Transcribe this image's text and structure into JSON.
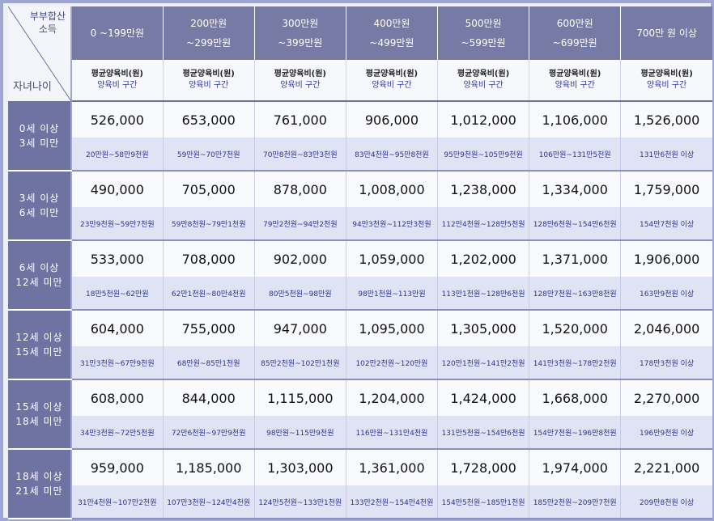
{
  "header": {
    "corner_income_line1": "부부합산",
    "corner_income_line2": "소득",
    "corner_age": "자녀나이",
    "brackets": [
      {
        "line1": "0  ~199만원",
        "line2": ""
      },
      {
        "line1": "200만원",
        "line2": "~299만원"
      },
      {
        "line1": "300만원",
        "line2": "~399만원"
      },
      {
        "line1": "400만원",
        "line2": "~499만원"
      },
      {
        "line1": "500만원",
        "line2": "~599만원"
      },
      {
        "line1": "600만원",
        "line2": "~699만원"
      },
      {
        "line1": "700만 원 이상",
        "line2": ""
      }
    ],
    "avg_label": "평균양육비(원)",
    "range_label": "양육비 구간"
  },
  "rows": [
    {
      "age_line1": "0세 이상",
      "age_line2": "3세 미만",
      "avg": [
        "526,000",
        "653,000",
        "761,000",
        "906,000",
        "1,012,000",
        "1,106,000",
        "1,526,000"
      ],
      "range": [
        "20만원~58만9천원",
        "59만원~70만7천원",
        "70만8천원~83만3천원",
        "83만4천원~95만8천원",
        "95만9천원~105만9천원",
        "106만원~131만5천원",
        "131만6천원 이상"
      ]
    },
    {
      "age_line1": "3세 이상",
      "age_line2": "6세 미만",
      "avg": [
        "490,000",
        "705,000",
        "878,000",
        "1,008,000",
        "1,238,000",
        "1,334,000",
        "1,759,000"
      ],
      "range": [
        "23만9천원~59만7천원",
        "59만8천원~79만1천원",
        "79만2천원~94만2천원",
        "94만3천원~112만3천원",
        "112만4천원~128만5천원",
        "128만6천원~154만6천원",
        "154만7천원 이상"
      ]
    },
    {
      "age_line1": "6세 이상",
      "age_line2": "12세 미만",
      "avg": [
        "533,000",
        "708,000",
        "902,000",
        "1,059,000",
        "1,202,000",
        "1,371,000",
        "1,906,000"
      ],
      "range": [
        "18만5천원~62만원",
        "62만1천원~80만4천원",
        "80만5천원~98만원",
        "98만1천원~113만원",
        "113만1천원~128만6천원",
        "128만7천원~163만8천원",
        "163만9천원 이상"
      ]
    },
    {
      "age_line1": "12세 이상",
      "age_line2": "15세 미만",
      "avg": [
        "604,000",
        "755,000",
        "947,000",
        "1,095,000",
        "1,305,000",
        "1,520,000",
        "2,046,000"
      ],
      "range": [
        "31만3천원~67만9천원",
        "68만원~85만1천원",
        "85만2천원~102만1천원",
        "102만2천원~120만원",
        "120만1천원~141만2천원",
        "141만3천원~178만2천원",
        "178만3천원 이상"
      ]
    },
    {
      "age_line1": "15세 이상",
      "age_line2": "18세 미만",
      "avg": [
        "608,000",
        "844,000",
        "1,115,000",
        "1,204,000",
        "1,424,000",
        "1,668,000",
        "2,270,000"
      ],
      "range": [
        "34만3천원~72만5천원",
        "72만6천원~97만9천원",
        "98만원~115만9천원",
        "116만원~131만4천원",
        "131만5천원~154만6천원",
        "154만7천원~196만8천원",
        "196만9천원 이상"
      ]
    },
    {
      "age_line1": "18세 이상",
      "age_line2": "21세 미만",
      "avg": [
        "959,000",
        "1,185,000",
        "1,303,000",
        "1,361,000",
        "1,728,000",
        "1,974,000",
        "2,221,000"
      ],
      "range": [
        "31만4천원~107만2천원",
        "107만3천원~124만4천원",
        "124만5천원~133만1천원",
        "133만2천원~154만4천원",
        "154만5천원~185만1천원",
        "185만2천원~209만7천원",
        "209만8천원 이상"
      ]
    }
  ]
}
